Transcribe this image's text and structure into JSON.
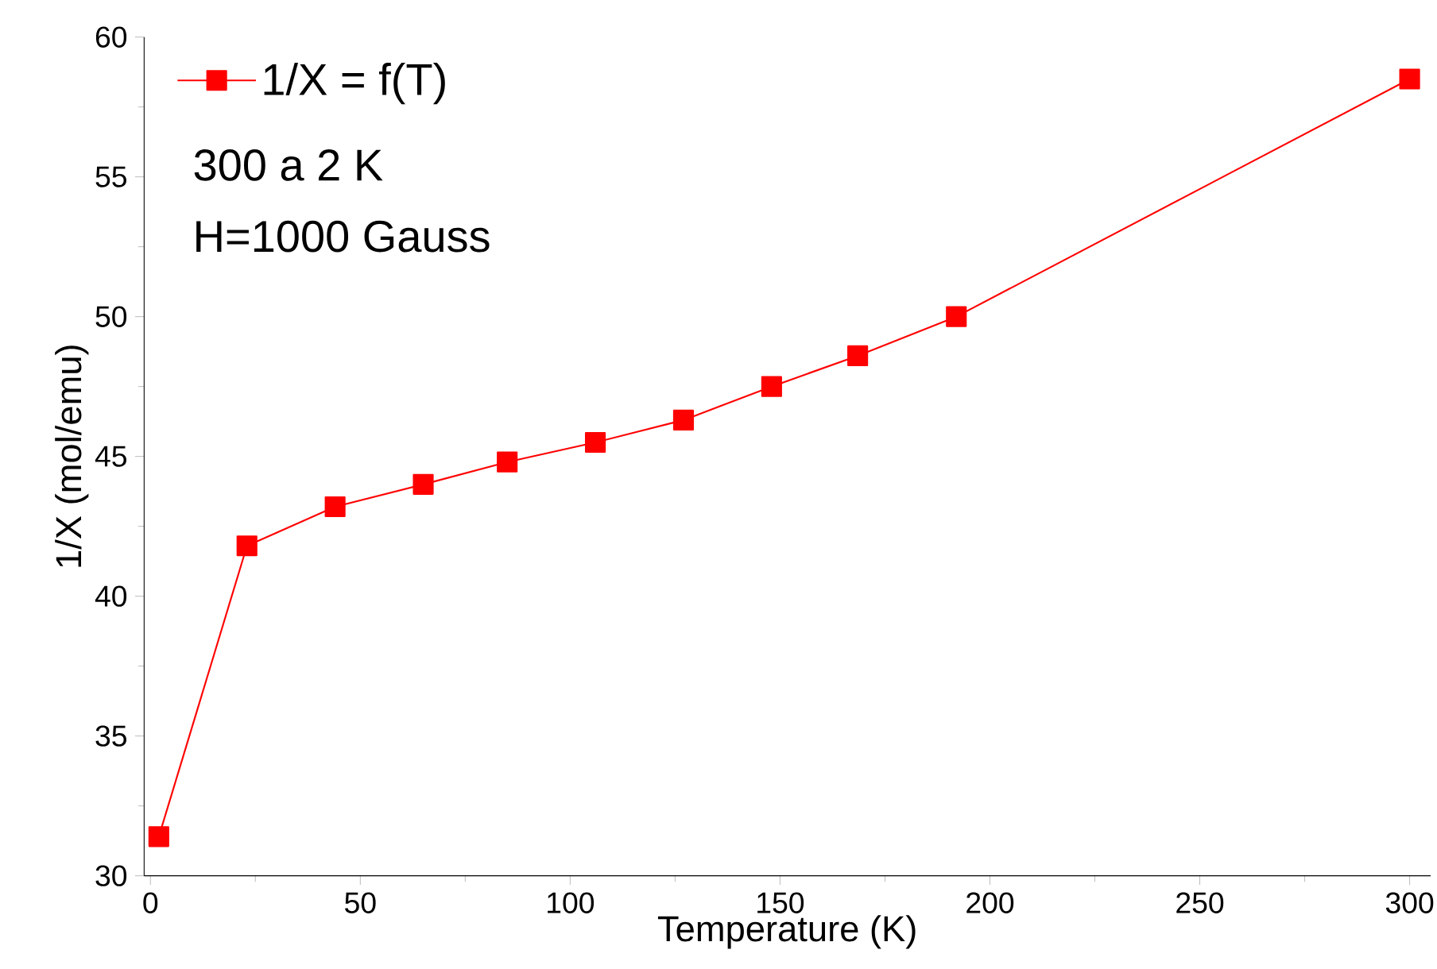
{
  "chart_data": {
    "type": "line",
    "xlabel": "Temperature (K)",
    "ylabel": "1/X (mol/emu)",
    "x": [
      2,
      23,
      44,
      65,
      85,
      106,
      127,
      148,
      168.5,
      192,
      300
    ],
    "series": [
      {
        "name": "1/X = f(T)",
        "color": "#ff0000",
        "values": [
          31.4,
          41.8,
          43.2,
          44.0,
          44.8,
          45.5,
          46.3,
          47.5,
          48.6,
          50.0,
          58.5
        ]
      }
    ],
    "xlim": [
      -1.5,
      305
    ],
    "ylim": [
      30,
      60
    ],
    "xticks": [
      0,
      50,
      100,
      150,
      200,
      250,
      300
    ],
    "yticks": [
      30,
      35,
      40,
      45,
      50,
      55,
      60
    ],
    "annotations": [
      "300 a 2 K",
      "H=1000 Gauss"
    ],
    "legend": "top left",
    "marker": "square",
    "line_style": "solid",
    "grid": false
  }
}
